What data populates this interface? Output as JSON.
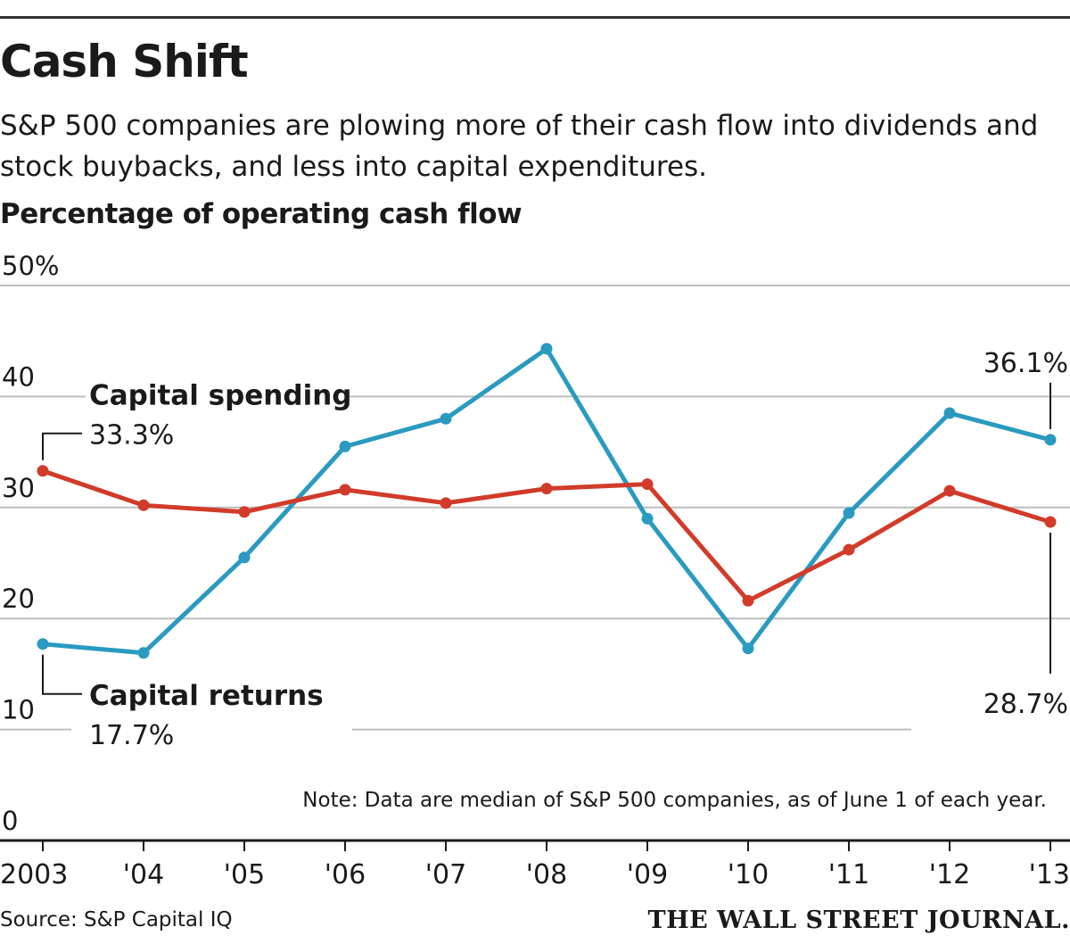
{
  "header": {
    "title": "Cash Shift",
    "subtitle": "S&P 500 companies are plowing more of their cash flow into dividends and stock buybacks, and less into capital expenditures.",
    "unit_label": "Percentage of operating cash flow"
  },
  "chart_data": {
    "type": "line",
    "title": "Cash Shift",
    "ylabel": "Percentage of operating cash flow",
    "xlabel": "",
    "ylim": [
      0,
      50
    ],
    "yticks": [
      0,
      10,
      20,
      30,
      40,
      50
    ],
    "ytick_labels": [
      "0",
      "10",
      "20",
      "30",
      "40",
      "50%"
    ],
    "categories": [
      "2003",
      "'04",
      "'05",
      "'06",
      "'07",
      "'08",
      "'09",
      "'10",
      "'11",
      "'12",
      "'13"
    ],
    "series": [
      {
        "name": "Capital returns",
        "color": "#2a9ac0",
        "values": [
          17.7,
          16.9,
          25.5,
          35.5,
          38.0,
          44.3,
          29.0,
          17.3,
          29.5,
          38.5,
          36.1
        ],
        "start_label": "17.7%",
        "end_label": "36.1%"
      },
      {
        "name": "Capital spending",
        "color": "#d13b2a",
        "values": [
          33.3,
          30.2,
          29.6,
          31.6,
          30.4,
          31.7,
          32.1,
          21.6,
          26.2,
          31.5,
          28.7
        ],
        "start_label": "33.3%",
        "end_label": "28.7%"
      }
    ],
    "note": "Note: Data are median of S&P 500 companies, as of June 1 of each year."
  },
  "footer": {
    "source": "Source: S&P Capital IQ",
    "brand": "THE WALL STREET JOURNAL."
  }
}
